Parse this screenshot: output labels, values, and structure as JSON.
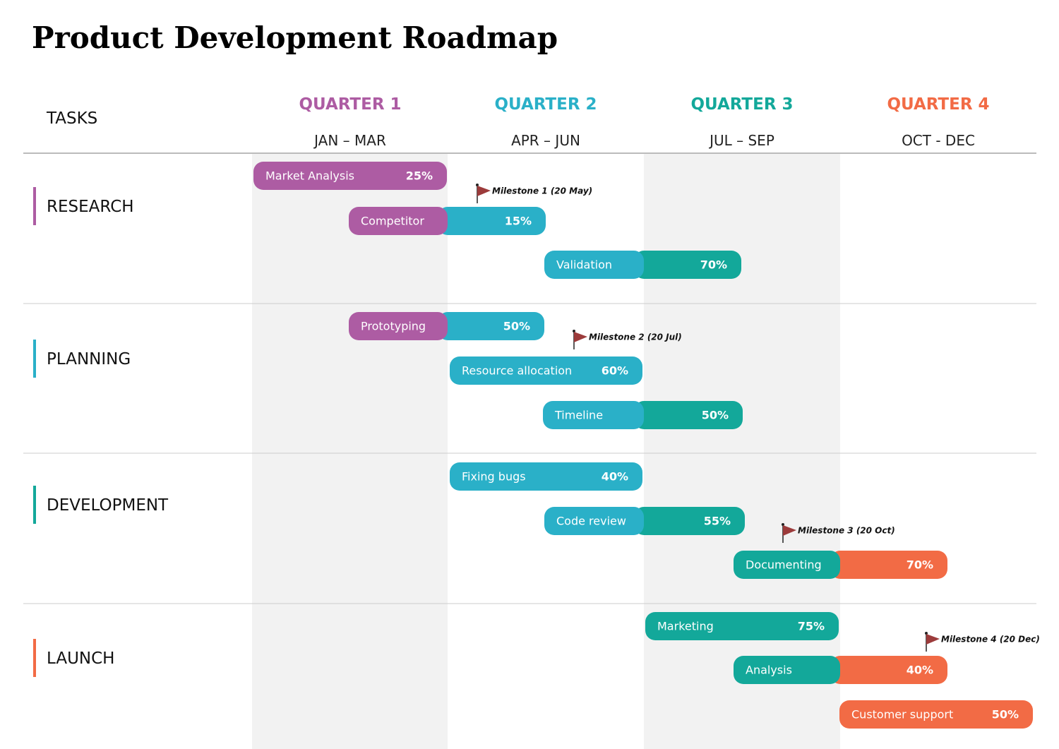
{
  "header": {
    "title": "Product Development Roadmap"
  },
  "tasks_heading": "TASKS",
  "quarters": [
    {
      "name": "QUARTER 1",
      "months": "JAN – MAR"
    },
    {
      "name": "QUARTER 2",
      "months": "APR – JUN"
    },
    {
      "name": "QUARTER 3",
      "months": "JUL – SEP"
    },
    {
      "name": "QUARTER 4",
      "months": "OCT - DEC"
    }
  ],
  "groups": [
    {
      "name": "RESEARCH",
      "tasks": [
        {
          "label": "Market Analysis",
          "progress": "25%"
        },
        {
          "label": "Competitor",
          "progress": "15%"
        },
        {
          "label": "Validation",
          "progress": "70%"
        }
      ]
    },
    {
      "name": "PLANNING",
      "tasks": [
        {
          "label": "Prototyping",
          "progress": "50%"
        },
        {
          "label": "Resource allocation",
          "progress": "60%"
        },
        {
          "label": "Timeline",
          "progress": "50%"
        }
      ]
    },
    {
      "name": "DEVELOPMENT",
      "tasks": [
        {
          "label": "Fixing bugs",
          "progress": "40%"
        },
        {
          "label": "Code review",
          "progress": "55%"
        },
        {
          "label": "Documenting",
          "progress": "70%"
        }
      ]
    },
    {
      "name": "LAUNCH",
      "tasks": [
        {
          "label": "Marketing",
          "progress": "75%"
        },
        {
          "label": "Analysis",
          "progress": "40%"
        },
        {
          "label": "Customer support",
          "progress": "50%"
        }
      ]
    }
  ],
  "milestones": [
    "Milestone 1 (20 May)",
    "Milestone 2 (20 Jul)",
    "Milestone 3 (20 Oct)",
    "Milestone 4 (20 Dec)"
  ]
}
